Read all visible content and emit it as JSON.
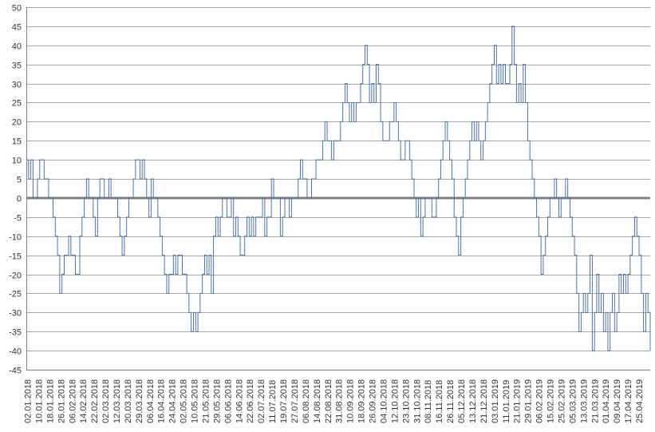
{
  "chart_data": {
    "type": "line",
    "title": "",
    "xlabel": "",
    "ylabel": "",
    "ylim": [
      -45,
      50
    ],
    "yticks": [
      50,
      45,
      40,
      35,
      30,
      25,
      20,
      15,
      10,
      5,
      0,
      -5,
      -10,
      -15,
      -20,
      -25,
      -30,
      -35,
      -40,
      -45
    ],
    "x_tick_labels": [
      "02.01.2018",
      "10.01.2018",
      "18.01.2018",
      "26.01.2018",
      "06.02.2018",
      "14.02.2018",
      "22.02.2018",
      "02.03.2018",
      "12.03.2018",
      "20.03.2018",
      "29.03.2018",
      "06.04.2018",
      "16.04.2018",
      "24.04.2018",
      "02.05.2018",
      "10.05.2018",
      "21.05.2018",
      "29.05.2018",
      "06.06.2018",
      "14.06.2018",
      "22.06.2018",
      "02.07.2018",
      "11.07.2018",
      "19.07.2018",
      "27.07.2018",
      "06.08.2018",
      "14.08.2018",
      "22.08.2018",
      "31.08.2018",
      "10.09.2018",
      "18.09.2018",
      "26.09.2018",
      "04.10.2018",
      "12.10.2018",
      "23.10.2018",
      "31.10.2018",
      "08.11.2018",
      "16.11.2018",
      "26.11.2018",
      "05.12.2018",
      "13.12.2018",
      "21.12.2018",
      "03.01.2019",
      "11.01.2019",
      "21.01.2019",
      "29.01.2019",
      "06.02.2019",
      "15.02.2019",
      "25.02.2019",
      "05.03.2019",
      "13.03.2019",
      "21.03.2019",
      "01.04.2019",
      "09.04.2019",
      "17.04.2019",
      "25.04.2019"
    ],
    "grid": true,
    "legend": "none",
    "colors": {
      "series": "#4a74ad",
      "zero_line": "#808080",
      "grid": "#a6a6a6",
      "axis": "#808080"
    },
    "series": [
      {
        "values": [
          10,
          5,
          10,
          0,
          0,
          5,
          10,
          10,
          5,
          5,
          0,
          0,
          -5,
          -10,
          -15,
          -25,
          -20,
          -15,
          -15,
          -10,
          -15,
          -15,
          -20,
          -20,
          -10,
          -5,
          0,
          5,
          0,
          0,
          -5,
          -10,
          0,
          5,
          5,
          0,
          0,
          5,
          0,
          0,
          0,
          -5,
          -10,
          -15,
          -10,
          -5,
          0,
          0,
          5,
          10,
          10,
          5,
          10,
          5,
          0,
          -5,
          5,
          0,
          0,
          -5,
          -10,
          -15,
          -20,
          -25,
          -20,
          -20,
          -15,
          -20,
          -15,
          -15,
          -20,
          -20,
          -25,
          -30,
          -35,
          -30,
          -35,
          -30,
          -25,
          -20,
          -15,
          -20,
          -15,
          -25,
          -10,
          -5,
          -10,
          -5,
          0,
          0,
          -5,
          -5,
          0,
          -10,
          -5,
          -10,
          -15,
          -15,
          -10,
          -5,
          -10,
          -5,
          -10,
          -5,
          -5,
          -5,
          0,
          -10,
          -5,
          -5,
          5,
          0,
          0,
          0,
          -10,
          -5,
          0,
          0,
          -5,
          0,
          0,
          0,
          5,
          10,
          5,
          5,
          0,
          0,
          5,
          5,
          10,
          10,
          10,
          15,
          20,
          15,
          15,
          10,
          15,
          15,
          15,
          20,
          25,
          30,
          25,
          20,
          25,
          20,
          25,
          25,
          30,
          35,
          40,
          35,
          25,
          30,
          25,
          35,
          30,
          20,
          15,
          15,
          15,
          20,
          20,
          25,
          20,
          15,
          10,
          10,
          15,
          15,
          10,
          5,
          0,
          -5,
          0,
          -10,
          -5,
          0,
          0,
          0,
          -5,
          -5,
          0,
          5,
          10,
          15,
          20,
          15,
          10,
          5,
          -5,
          -10,
          -15,
          -5,
          0,
          5,
          10,
          15,
          20,
          15,
          20,
          15,
          10,
          15,
          20,
          25,
          30,
          35,
          40,
          30,
          35,
          30,
          35,
          30,
          30,
          35,
          45,
          35,
          25,
          30,
          25,
          35,
          25,
          15,
          10,
          5,
          0,
          -5,
          -10,
          -20,
          -15,
          -10,
          -5,
          0,
          0,
          5,
          0,
          -5,
          0,
          0,
          5,
          0,
          -5,
          -10,
          -15,
          -25,
          -35,
          -30,
          -25,
          -30,
          -25,
          -15,
          -40,
          -30,
          -20,
          -30,
          -25,
          -35,
          -30,
          -40,
          -30,
          -25,
          -35,
          -30,
          -20,
          -25,
          -20,
          -25,
          -20,
          -15,
          -10,
          -5,
          -10,
          -15,
          -25,
          -35,
          -25,
          -30,
          -40
        ]
      }
    ]
  }
}
